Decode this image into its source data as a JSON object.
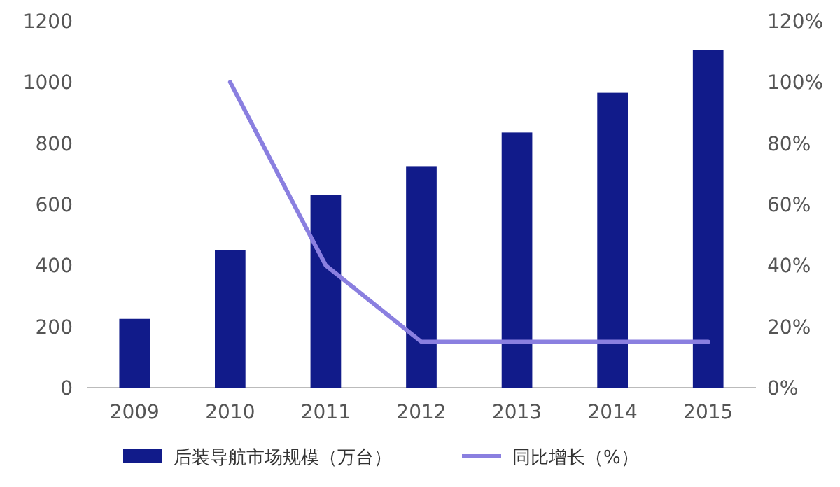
{
  "chart_data": {
    "type": "bar",
    "categories": [
      "2009",
      "2010",
      "2011",
      "2012",
      "2013",
      "2014",
      "2015"
    ],
    "series": [
      {
        "name": "后装导航市场规模（万台）",
        "color": "#111b8a",
        "values": [
          225,
          450,
          630,
          725,
          835,
          965,
          1105
        ]
      },
      {
        "name": "同比增长（%）",
        "type": "line",
        "axis": "y2",
        "color": "#8a7fe0",
        "values": [
          null,
          100,
          40,
          15,
          15,
          15,
          15
        ]
      }
    ],
    "ylim": [
      0,
      1200
    ],
    "yticks": [
      0,
      200,
      400,
      600,
      800,
      1000,
      1200
    ],
    "y2lim": [
      0,
      120
    ],
    "y2ticks": [
      {
        "value": 0,
        "label": "0%"
      },
      {
        "value": 20,
        "label": "20%"
      },
      {
        "value": 40,
        "label": "40%"
      },
      {
        "value": 60,
        "label": "60%"
      },
      {
        "value": 80,
        "label": "80%"
      },
      {
        "value": 100,
        "label": "100%"
      },
      {
        "value": 120,
        "label": "120%"
      }
    ],
    "grid": false,
    "legend": "bottom",
    "marker": "none",
    "line_style": "solid"
  }
}
